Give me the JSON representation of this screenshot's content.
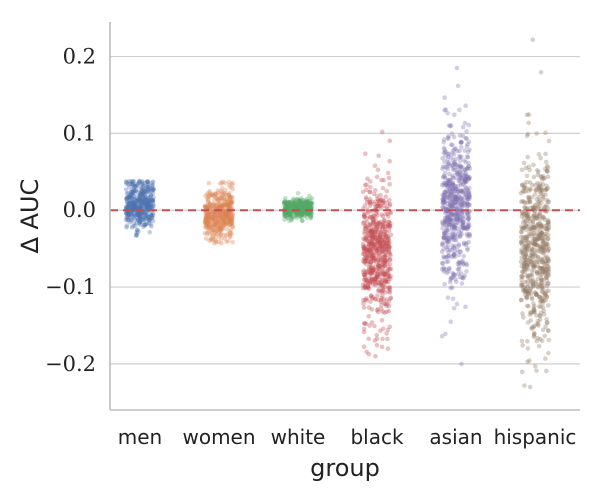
{
  "chart_data": {
    "type": "scatter",
    "subtype": "strip",
    "title": "",
    "xlabel": "group",
    "ylabel": "∆ AUC",
    "categories": [
      "men",
      "women",
      "white",
      "black",
      "asian",
      "hispanic"
    ],
    "ylim": [
      -0.26,
      0.245
    ],
    "yticks": [
      0.2,
      0.1,
      0.0,
      -0.1,
      -0.2
    ],
    "ytick_labels": [
      "0.2",
      "0.1",
      "0.0",
      "−0.1",
      "−0.2"
    ],
    "grid": "horizontal",
    "reference_line": {
      "y": 0.0,
      "style": "dashed",
      "color": "#c44e52"
    },
    "series": [
      {
        "category": "men",
        "color": "#4c72b0",
        "center": 0.007,
        "spread": 0.016,
        "min": -0.033,
        "max": 0.038,
        "n": 420
      },
      {
        "category": "women",
        "color": "#dd8452",
        "center": -0.006,
        "spread": 0.017,
        "min": -0.043,
        "max": 0.037,
        "n": 420
      },
      {
        "category": "white",
        "color": "#55a868",
        "center": 0.002,
        "spread": 0.006,
        "min": -0.014,
        "max": 0.022,
        "n": 420
      },
      {
        "category": "black",
        "color": "#c44e52",
        "center": -0.06,
        "spread": 0.045,
        "min": -0.19,
        "max": 0.102,
        "n": 600
      },
      {
        "category": "asian",
        "color": "#8172b3",
        "center": 0.005,
        "spread": 0.05,
        "min": -0.2,
        "max": 0.185,
        "n": 600
      },
      {
        "category": "hispanic",
        "color": "#937860",
        "center": -0.05,
        "spread": 0.06,
        "min": -0.23,
        "max": 0.222,
        "n": 600
      }
    ]
  }
}
